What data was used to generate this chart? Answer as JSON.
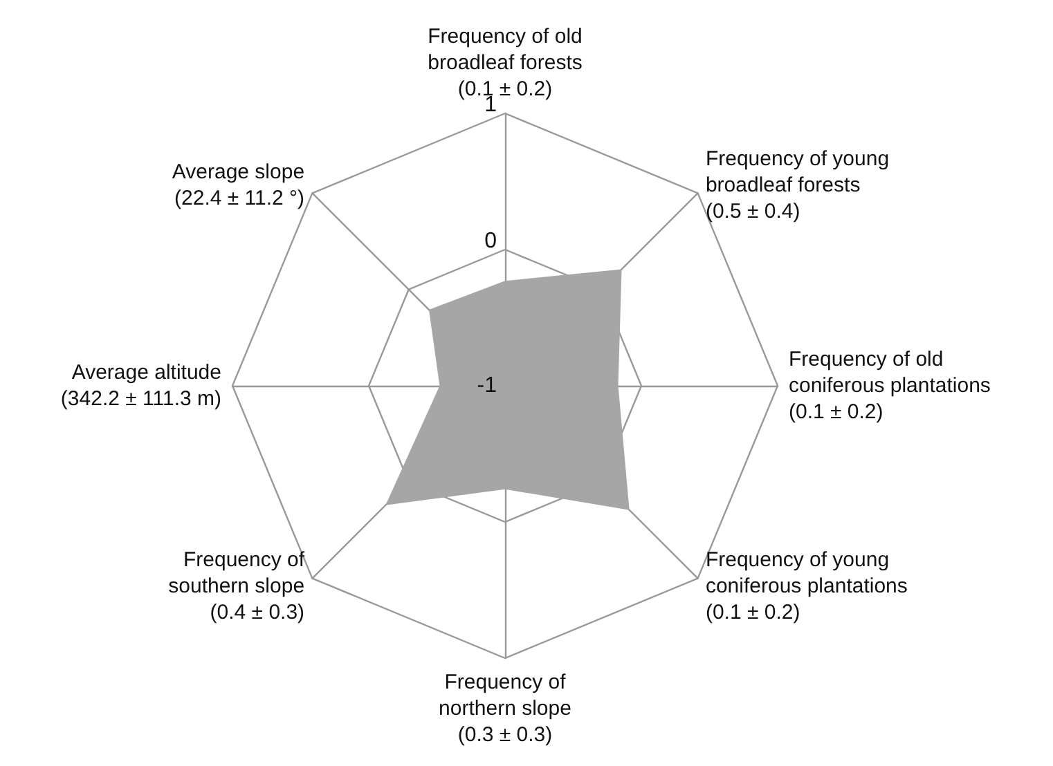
{
  "chart_data": {
    "type": "radar",
    "categories": [
      "Frequency of old\nbroadleaf forests\n(0.1 ± 0.2)",
      "Frequency of young\nbroadleaf forests\n(0.5 ± 0.4)",
      "Frequency of old\nconiferous plantations\n(0.1 ± 0.2)",
      "Frequency of young\nconiferous plantations\n(0.1 ± 0.2)",
      "Frequency of\nnorthern slope\n(0.3 ± 0.3)",
      "Frequency of\nsouthern slope\n(0.4 ± 0.3)",
      "Average altitude\n(342.2 ± 111.3 m)",
      "Average slope\n(22.4 ± 11.2 °)"
    ],
    "series": [
      {
        "color": "#a6a6a6",
        "values": [
          -0.23,
          0.21,
          -0.17,
          0.29,
          -0.24,
          0.24,
          -0.52,
          -0.21
        ]
      }
    ],
    "ylim": [
      -1,
      1
    ],
    "yticks": [
      -1,
      0,
      1
    ]
  }
}
